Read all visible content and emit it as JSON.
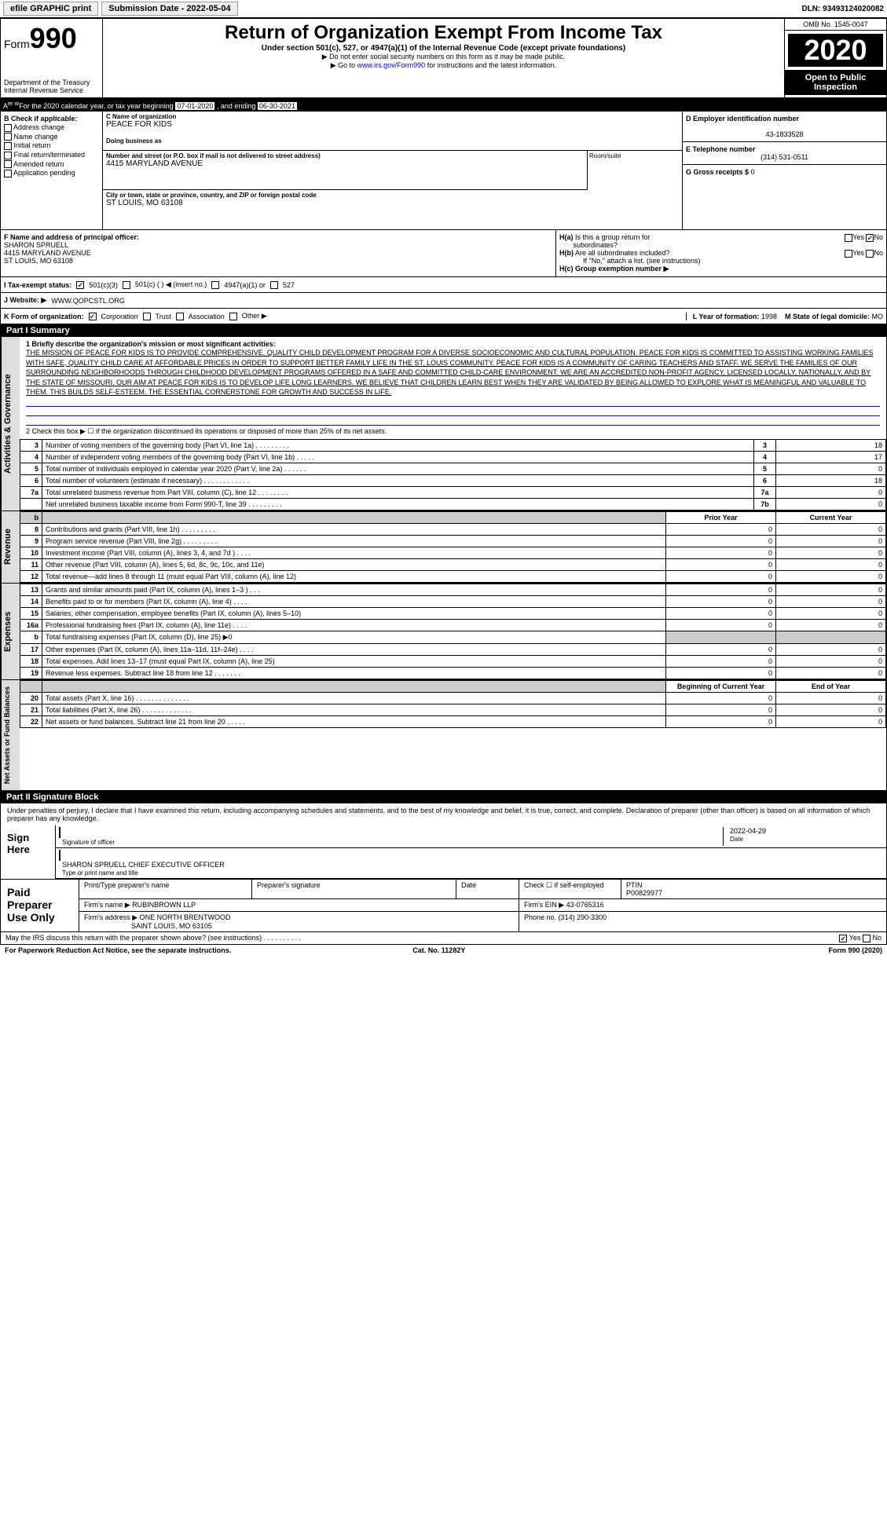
{
  "topbar": {
    "efile": "efile GRAPHIC print",
    "subdate_label": "Submission Date - 2022-05-04",
    "dln": "DLN: 93493124020082"
  },
  "header": {
    "form_prefix": "Form",
    "form_num": "990",
    "dept": "Department of the Treasury\nInternal Revenue Service",
    "title": "Return of Organization Exempt From Income Tax",
    "subtitle": "Under section 501(c), 527, or 4947(a)(1) of the Internal Revenue Code (except private foundations)",
    "note1": "▶ Do not enter social security numbers on this form as it may be made public.",
    "note2": "▶ Go to www.irs.gov/Form990 for instructions and the latest information.",
    "link": "www.irs.gov/Form990",
    "omb": "OMB No. 1545-0047",
    "year": "2020",
    "inspect": "Open to Public Inspection"
  },
  "period": {
    "prefix": "A For the 2020 calendar year, or tax year beginning ",
    "begin": "07-01-2020",
    "mid": " , and ending ",
    "end": "06-30-2021"
  },
  "colB": {
    "label": "B Check if applicable:",
    "opts": [
      "Address change",
      "Name change",
      "Initial return",
      "Final return/terminated",
      "Amended return",
      "Application pending"
    ]
  },
  "colC": {
    "name_lbl": "C Name of organization",
    "name": "PEACE FOR KIDS",
    "dba_lbl": "Doing business as",
    "dba": "",
    "addr_lbl": "Number and street (or P.O. box if mail is not delivered to street address)",
    "addr": "4415 MARYLAND AVENUE",
    "room_lbl": "Room/suite",
    "city_lbl": "City or town, state or province, country, and ZIP or foreign postal code",
    "city": "ST LOUIS, MO  63108"
  },
  "colD": {
    "ein_lbl": "D Employer identification number",
    "ein": "43-1833528",
    "tel_lbl": "E Telephone number",
    "tel": "(314) 531-0511",
    "gross_lbl": "G Gross receipts $",
    "gross": "0"
  },
  "F": {
    "lbl": "F Name and address of principal officer:",
    "name": "SHARON SPRUELL",
    "addr1": "4415 MARYLAND AVENUE",
    "addr2": "ST LOUIS, MO  63108"
  },
  "H": {
    "a_lbl": "H(a) Is this a group return for subordinates?",
    "b_lbl": "H(b) Are all subordinates included?",
    "attach": "If \"No,\" attach a list. (see instructions)",
    "c_lbl": "H(c) Group exemption number ▶"
  },
  "I": {
    "lbl": "I Tax-exempt status:",
    "opts": [
      "501(c)(3)",
      "501(c) (  ) ◀ (insert no.)",
      "4947(a)(1) or",
      "527"
    ]
  },
  "J": {
    "lbl": "J Website: ▶",
    "val": "WWW.QOPCSTL.ORG"
  },
  "K": {
    "lbl": "K Form of organization:",
    "opts": [
      "Corporation",
      "Trust",
      "Association",
      "Other ▶"
    ],
    "L_lbl": "L Year of formation:",
    "L_val": "1998",
    "M_lbl": "M State of legal domicile:",
    "M_val": "MO"
  },
  "part1": {
    "hdr": "Part I    Summary",
    "q1": "1 Briefly describe the organization's mission or most significant activities:",
    "mission": "THE MISSION OF PEACE FOR KIDS IS TO PROVIDE COMPREHENSIVE, QUALITY CHILD DEVELOPMENT PROGRAM FOR A DIVERSE SOCIOECONOMIC AND CULTURAL POPULATION. PEACE FOR KIDS IS COMMITTED TO ASSISTING WORKING FAMILIES WITH SAFE, QUALITY CHILD CARE AT AFFORDABLE PRICES IN ORDER TO SUPPORT BETTER FAMILY LIFE IN THE ST. LOUIS COMMUNITY. PEACE FOR KIDS IS A COMMUNITY OF CARING TEACHERS AND STAFF. WE SERVE THE FAMILIES OF OUR SURROUNDING NEIGHBORHOODS THROUGH CHILDHOOD DEVELOPMENT PROGRAMS OFFERED IN A SAFE AND COMMITTED CHILD-CARE ENVIRONMENT. WE ARE AN ACCREDITED NON-PROFIT AGENCY, LICENSED LOCALLY, NATIONALLY, AND BY THE STATE OF MISSOURI. OUR AIM AT PEACE FOR KIDS IS TO DEVELOP LIFE LONG LEARNERS. WE BELIEVE THAT CHILDREN LEARN BEST WHEN THEY ARE VALIDATED BY BEING ALLOWED TO EXPLORE WHAT IS MEANINGFUL AND VALUABLE TO THEM. THIS BUILDS SELF-ESTEEM, THE ESSENTIAL CORNERSTONE FOR GROWTH AND SUCCESS IN LIFE.",
    "q2": "2 Check this box ▶ ☐ if the organization discontinued its operations or disposed of more than 25% of its net assets.",
    "rows_gov": [
      {
        "n": "3",
        "t": "Number of voting members of the governing body (Part VI, line 1a)  .  .  .  .  .  .  .  .  .",
        "rn": "3",
        "v": "18"
      },
      {
        "n": "4",
        "t": "Number of independent voting members of the governing body (Part VI, line 1b)  .  .  .  .  .",
        "rn": "4",
        "v": "17"
      },
      {
        "n": "5",
        "t": "Total number of individuals employed in calendar year 2020 (Part V, line 2a)  .  .  .  .  .  .",
        "rn": "5",
        "v": "0"
      },
      {
        "n": "6",
        "t": "Total number of volunteers (estimate if necessary)  .  .  .  .  .  .  .  .  .  .  .  .",
        "rn": "6",
        "v": "18"
      },
      {
        "n": "7a",
        "t": "Total unrelated business revenue from Part VIII, column (C), line 12  .  .  .  .  .  .  .  .",
        "rn": "7a",
        "v": "0"
      },
      {
        "n": "",
        "t": "Net unrelated business taxable income from Form 990-T, line 39  .  .  .  .  .  .  .  .  .",
        "rn": "7b",
        "v": "0"
      }
    ],
    "col_hdr_prior": "Prior Year",
    "col_hdr_curr": "Current Year",
    "rows_rev": [
      {
        "n": "8",
        "t": "Contributions and grants (Part VIII, line 1h)  .  .  .  .  .  .  .  .  .",
        "p": "0",
        "c": "0"
      },
      {
        "n": "9",
        "t": "Program service revenue (Part VIII, line 2g)  .  .  .  .  .  .  .  .  .",
        "p": "0",
        "c": "0"
      },
      {
        "n": "10",
        "t": "Investment income (Part VIII, column (A), lines 3, 4, and 7d )  .  .  .  .",
        "p": "0",
        "c": "0"
      },
      {
        "n": "11",
        "t": "Other revenue (Part VIII, column (A), lines 5, 6d, 8c, 9c, 10c, and 11e)",
        "p": "0",
        "c": "0"
      },
      {
        "n": "12",
        "t": "Total revenue—add lines 8 through 11 (must equal Part VIII, column (A), line 12)",
        "p": "0",
        "c": "0"
      }
    ],
    "rows_exp": [
      {
        "n": "13",
        "t": "Grants and similar amounts paid (Part IX, column (A), lines 1–3 )  .  .  .",
        "p": "0",
        "c": "0"
      },
      {
        "n": "14",
        "t": "Benefits paid to or for members (Part IX, column (A), line 4)  .  .  .  .",
        "p": "0",
        "c": "0"
      },
      {
        "n": "15",
        "t": "Salaries, other compensation, employee benefits (Part IX, column (A), lines 5–10)",
        "p": "0",
        "c": "0"
      },
      {
        "n": "16a",
        "t": "Professional fundraising fees (Part IX, column (A), line 11e)  .  .  .  .",
        "p": "0",
        "c": "0"
      },
      {
        "n": "b",
        "t": "Total fundraising expenses (Part IX, column (D), line 25) ▶0",
        "p": "",
        "c": "",
        "grey": true
      },
      {
        "n": "17",
        "t": "Other expenses (Part IX, column (A), lines 11a–11d, 11f–24e)  .  .  .  .",
        "p": "0",
        "c": "0"
      },
      {
        "n": "18",
        "t": "Total expenses. Add lines 13–17 (must equal Part IX, column (A), line 25)",
        "p": "0",
        "c": "0"
      },
      {
        "n": "19",
        "t": "Revenue less expenses. Subtract line 18 from line 12  .  .  .  .  .  .  .",
        "p": "0",
        "c": "0"
      }
    ],
    "col_hdr_beg": "Beginning of Current Year",
    "col_hdr_end": "End of Year",
    "rows_net": [
      {
        "n": "20",
        "t": "Total assets (Part X, line 16)  .  .  .  .  .  .  .  .  .  .  .  .  .  .",
        "p": "0",
        "c": "0"
      },
      {
        "n": "21",
        "t": "Total liabilities (Part X, line 26)  .  .  .  .  .  .  .  .  .  .  .  .  .",
        "p": "0",
        "c": "0"
      },
      {
        "n": "22",
        "t": "Net assets or fund balances. Subtract line 21 from line 20  .  .  .  .  .",
        "p": "0",
        "c": "0"
      }
    ]
  },
  "part2": {
    "hdr": "Part II   Signature Block",
    "perjury": "Under penalties of perjury, I declare that I have examined this return, including accompanying schedules and statements, and to the best of my knowledge and belief, it is true, correct, and complete. Declaration of preparer (other than officer) is based on all information of which preparer has any knowledge.",
    "sign_here": "Sign Here",
    "sig_officer": "Signature of officer",
    "date_lbl": "Date",
    "date": "2022-04-29",
    "name_title": "SHARON SPRUELL CHIEF EXECUTIVE OFFICER",
    "type_lbl": "Type or print name and title"
  },
  "paid": {
    "lbl": "Paid Preparer Use Only",
    "print_lbl": "Print/Type preparer's name",
    "sig_lbl": "Preparer's signature",
    "date_lbl": "Date",
    "self_lbl": "Check ☐ if self-employed",
    "ptin_lbl": "PTIN",
    "ptin": "P00829977",
    "firm_name_lbl": "Firm's name    ▶",
    "firm_name": "RUBINBROWN LLP",
    "firm_ein_lbl": "Firm's EIN ▶",
    "firm_ein": "43-0765316",
    "firm_addr_lbl": "Firm's address ▶",
    "firm_addr1": "ONE NORTH BRENTWOOD",
    "firm_addr2": "SAINT LOUIS, MO  63105",
    "phone_lbl": "Phone no.",
    "phone": "(314) 290-3300"
  },
  "footer": {
    "discuss": "May the IRS discuss this return with the preparer shown above? (see instructions)  .  .  .  .  .  .  .  .  .  .",
    "yes": "Yes",
    "no": "No",
    "pra": "For Paperwork Reduction Act Notice, see the separate instructions.",
    "cat": "Cat. No. 11282Y",
    "form": "Form 990 (2020)"
  },
  "vtabs": {
    "gov": "Activities & Governance",
    "rev": "Revenue",
    "exp": "Expenses",
    "net": "Net Assets or Fund Balances"
  }
}
